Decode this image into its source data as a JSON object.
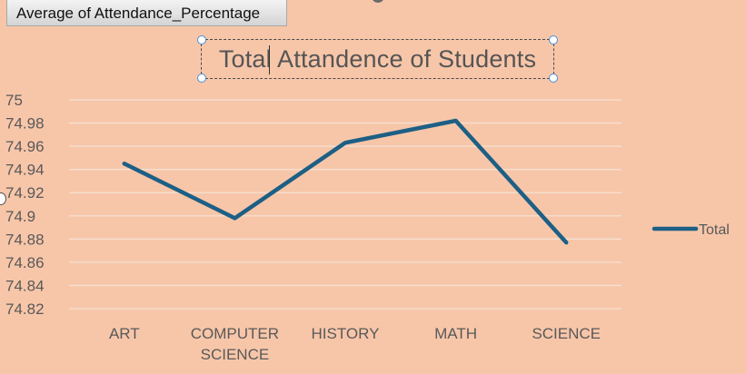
{
  "pivot_field_button": "Average of Attendance_Percentage",
  "chart_data": {
    "type": "line",
    "title": "Total Attandence of Students",
    "categories": [
      "ART",
      "COMPUTER SCIENCE",
      "HISTORY",
      "MATH",
      "SCIENCE"
    ],
    "category_lines": [
      [
        "ART"
      ],
      [
        "COMPUTER",
        "SCIENCE"
      ],
      [
        "HISTORY"
      ],
      [
        "MATH"
      ],
      [
        "SCIENCE"
      ]
    ],
    "series": [
      {
        "name": "Total",
        "values": [
          74.945,
          74.898,
          74.963,
          74.982,
          74.877
        ],
        "color": "#1d5f85"
      }
    ],
    "ylim": [
      74.82,
      75
    ],
    "yticks": [
      "75",
      "74.98",
      "74.96",
      "74.94",
      "74.92",
      "74.9",
      "74.88",
      "74.86",
      "74.84",
      "74.82"
    ],
    "ytick_values": [
      75,
      74.98,
      74.96,
      74.94,
      74.92,
      74.9,
      74.88,
      74.86,
      74.84,
      74.82
    ],
    "grid": true,
    "legend": "right"
  }
}
